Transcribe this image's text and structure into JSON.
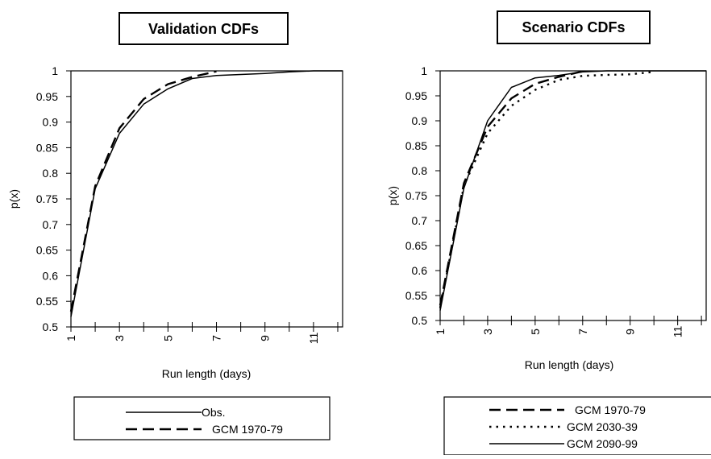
{
  "chart_data": [
    {
      "type": "line",
      "title": "Validation CDFs",
      "xlabel": "Run length (days)",
      "ylabel": "p(x)",
      "xlim": [
        1,
        12.2
      ],
      "ylim": [
        0.5,
        1
      ],
      "xticks": [
        1,
        2,
        3,
        4,
        5,
        6,
        7,
        8,
        9,
        10,
        11,
        12
      ],
      "xtick_labels": [
        "1",
        "3",
        "5",
        "7",
        "9",
        "11"
      ],
      "xtick_label_values": [
        1,
        3,
        5,
        7,
        9,
        11
      ],
      "yticks": [
        0.5,
        0.55,
        0.6,
        0.65,
        0.7,
        0.75,
        0.8,
        0.85,
        0.9,
        0.95,
        1
      ],
      "ytick_labels": [
        "0.5",
        "0.55",
        "0.6",
        "0.65",
        "0.7",
        "0.75",
        "0.8",
        "0.85",
        "0.9",
        "0.95",
        "1"
      ],
      "grid": false,
      "legend_position": "below",
      "series": [
        {
          "name": "Obs.",
          "style": "solid",
          "x": [
            1,
            2,
            3,
            4,
            5,
            6,
            7,
            8,
            9,
            10,
            11,
            12.2
          ],
          "y": [
            0.52,
            0.77,
            0.878,
            0.935,
            0.965,
            0.985,
            0.991,
            0.993,
            0.995,
            0.998,
            1.0,
            1.0
          ]
        },
        {
          "name": "GCM 1970-79",
          "style": "dashed",
          "x": [
            1,
            2,
            3,
            4,
            5,
            6,
            7
          ],
          "y": [
            0.53,
            0.775,
            0.888,
            0.945,
            0.974,
            0.988,
            0.999
          ]
        }
      ]
    },
    {
      "type": "line",
      "title": "Scenario CDFs",
      "xlabel": "Run length (days)",
      "ylabel": "p(x)",
      "xlim": [
        1,
        12.2
      ],
      "ylim": [
        0.5,
        1
      ],
      "xticks": [
        1,
        2,
        3,
        4,
        5,
        6,
        7,
        8,
        9,
        10,
        11,
        12
      ],
      "xtick_labels": [
        "1",
        "3",
        "5",
        "7",
        "9",
        "11"
      ],
      "xtick_label_values": [
        1,
        3,
        5,
        7,
        9,
        11
      ],
      "yticks": [
        0.5,
        0.55,
        0.6,
        0.65,
        0.7,
        0.75,
        0.8,
        0.85,
        0.9,
        0.95,
        1
      ],
      "ytick_labels": [
        "0.5",
        "0.55",
        "0.6",
        "0.65",
        "0.7",
        "0.75",
        "0.8",
        "0.85",
        "0.9",
        "0.95",
        "1"
      ],
      "grid": false,
      "legend_position": "below",
      "series": [
        {
          "name": "GCM 1970-79",
          "style": "dashed",
          "x": [
            1,
            2,
            3,
            4,
            5,
            6,
            7
          ],
          "y": [
            0.53,
            0.775,
            0.888,
            0.945,
            0.974,
            0.988,
            0.999
          ]
        },
        {
          "name": "GCM 2030-39",
          "style": "dotted",
          "x": [
            1,
            2,
            3,
            4,
            5,
            6,
            7,
            8,
            9,
            10
          ],
          "y": [
            0.525,
            0.77,
            0.875,
            0.93,
            0.962,
            0.982,
            0.99,
            0.992,
            0.993,
            0.998
          ]
        },
        {
          "name": "GCM 2090-99",
          "style": "solid",
          "x": [
            1,
            2,
            3,
            4,
            5,
            6,
            7,
            8,
            12.2
          ],
          "y": [
            0.52,
            0.765,
            0.9,
            0.967,
            0.986,
            0.991,
            0.998,
            1.0,
            1.0
          ]
        }
      ]
    }
  ]
}
